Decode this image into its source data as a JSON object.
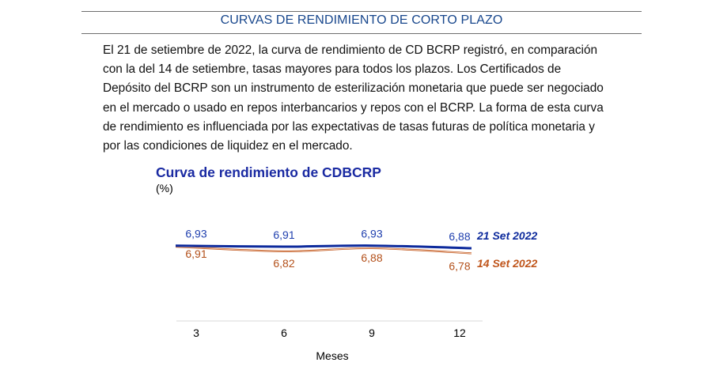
{
  "section": {
    "title": "CURVAS DE RENDIMIENTO DE CORTO PLAZO"
  },
  "body": {
    "paragraph": "El 21 de setiembre de 2022, la curva de rendimiento de CD BCRP registró, en comparación con la del 14 de setiembre, tasas mayores para todos los plazos. Los Certificados de Depósito del BCRP son un instrumento de esterilización monetaria que puede ser negociado en el mercado o usado en repos interbancarios y repos con el BCRP. La forma de esta curva de rendimiento es influenciada por las expectativas de tasas futuras de política monetaria y por las condiciones de liquidez en el mercado."
  },
  "chart_data": {
    "type": "line",
    "title": "Curva de rendimiento de CDBCRP",
    "ylabel": "(%)",
    "xlabel": "Meses",
    "categories": [
      "3",
      "6",
      "9",
      "12"
    ],
    "series": [
      {
        "name": "21 Set 2022",
        "values": [
          6.93,
          6.91,
          6.93,
          6.88
        ],
        "color": "#0d2a9c",
        "label_color": "#1f3fae"
      },
      {
        "name": "14 Set 2022",
        "values": [
          6.91,
          6.82,
          6.88,
          6.78
        ],
        "color": "#c0561c",
        "label_color": "#b3501a"
      }
    ],
    "value_labels": {
      "21 Set 2022": [
        "6,93",
        "6,91",
        "6,93",
        "6,88"
      ],
      "14 Set 2022": [
        "6,91",
        "6,82",
        "6,88",
        "6,78"
      ]
    },
    "grid": false,
    "legend": "right (inline labels at line ends)"
  }
}
